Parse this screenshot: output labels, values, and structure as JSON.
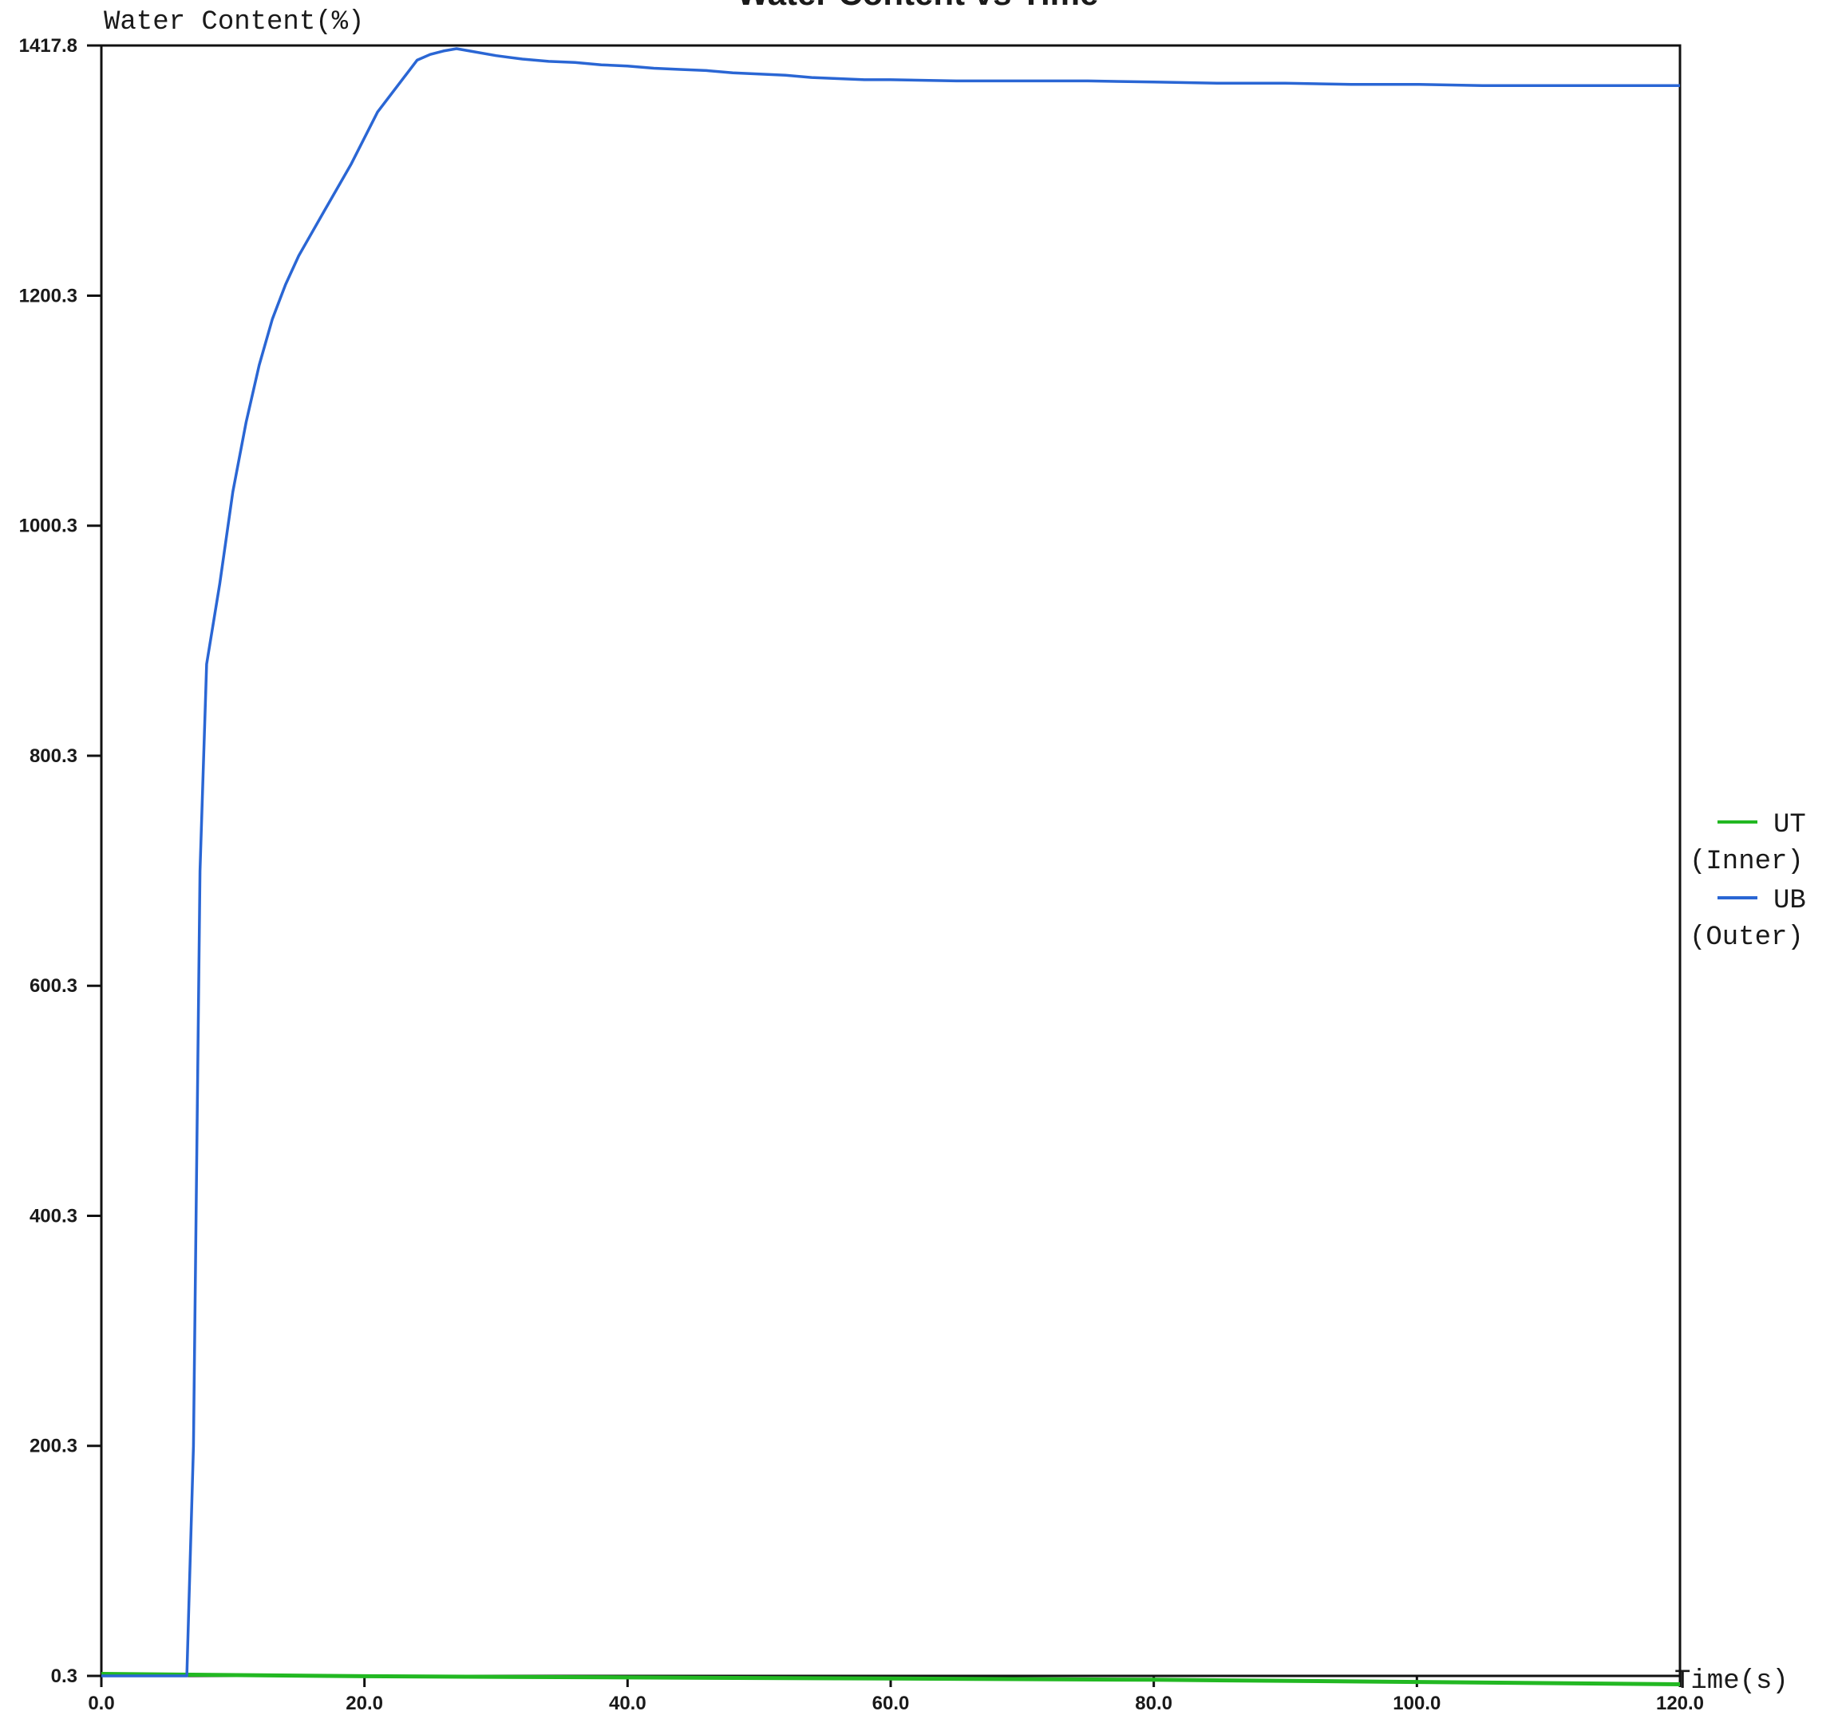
{
  "chart_data": {
    "type": "line",
    "title": "Water Content vs Time",
    "ylabel": "Water Content(%)",
    "xlabel": "Time(s)",
    "xlim": [
      0.0,
      120.0
    ],
    "ylim": [
      0.3,
      1417.8
    ],
    "x_ticks": [
      "0.0",
      "20.0",
      "40.0",
      "60.0",
      "80.0",
      "100.0",
      "120.0"
    ],
    "y_ticks": [
      "0.3",
      "200.3",
      "400.3",
      "600.3",
      "800.3",
      "1000.3",
      "1200.3",
      "1417.8"
    ],
    "y_tick_values": [
      0.3,
      200.3,
      400.3,
      600.3,
      800.3,
      1000.3,
      1200.3,
      1417.8
    ],
    "grid": false,
    "legend_position": "right",
    "series": [
      {
        "name": "UT (Inner)",
        "legend_lines": [
          "UT",
          "(Inner)"
        ],
        "color": "#22b822",
        "x": [
          0,
          20,
          40,
          60,
          80,
          100,
          120
        ],
        "y": [
          2,
          0,
          -1,
          -2,
          -3,
          -5,
          -7
        ]
      },
      {
        "name": "UB (Outer)",
        "legend_lines": [
          "UB",
          "(Outer)"
        ],
        "color": "#2a66d4",
        "x": [
          0,
          6.5,
          7,
          7.5,
          8,
          9,
          10,
          11,
          12,
          13,
          14,
          15,
          17,
          19,
          21,
          23,
          24,
          25,
          26,
          27,
          28,
          30,
          32,
          34,
          36,
          38,
          40,
          42,
          44,
          46,
          48,
          50,
          52,
          54,
          56,
          58,
          60,
          65,
          70,
          75,
          80,
          85,
          90,
          95,
          100,
          105,
          110,
          115,
          120
        ],
        "y": [
          0.3,
          0.3,
          200,
          700,
          880,
          950,
          1030,
          1090,
          1140,
          1180,
          1210,
          1235,
          1275,
          1315,
          1360,
          1390,
          1405,
          1410,
          1413,
          1415,
          1413,
          1409,
          1406,
          1404,
          1403,
          1401,
          1400,
          1398,
          1397,
          1396,
          1394,
          1393,
          1392,
          1390,
          1389,
          1388,
          1388,
          1387,
          1387,
          1387,
          1386,
          1385,
          1385,
          1384,
          1384,
          1383,
          1383,
          1383,
          1383
        ]
      }
    ]
  }
}
